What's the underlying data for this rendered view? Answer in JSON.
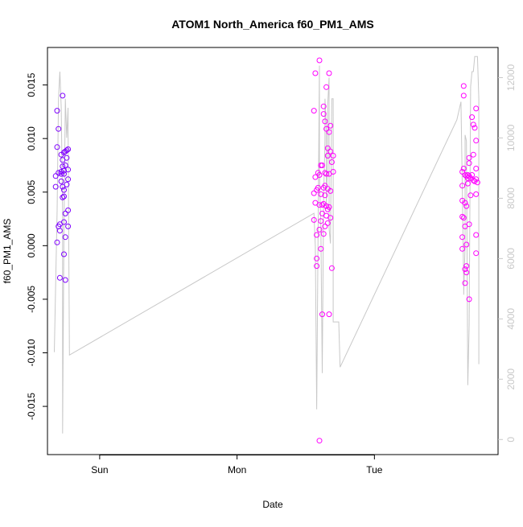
{
  "chart_data": {
    "type": "scatter",
    "title": "ATOM1 North_America f60_PM1_AMS",
    "xlabel": "Date",
    "ylabel": "f60_PM1_AMS",
    "x_ticks": [
      "Sun",
      "Mon",
      "Tue"
    ],
    "y_ticks": [
      "0.015",
      "0.010",
      "0.005",
      "0.000",
      "-0.005",
      "-0.010",
      "-0.015"
    ],
    "y_tick_values": [
      0.015,
      0.01,
      0.005,
      0.0,
      -0.005,
      -0.01,
      -0.015
    ],
    "ylim": [
      -0.0195,
      0.0185
    ],
    "y2_ticks": [
      "12000",
      "10000",
      "8000",
      "6000",
      "4000",
      "2000",
      "0"
    ],
    "y2_tick_values": [
      12000,
      10000,
      8000,
      6000,
      4000,
      2000,
      0
    ],
    "y2lim": [
      -500,
      13000
    ],
    "xlim_days_from_sun": [
      -0.38,
      2.9
    ],
    "secondary_line_color": "#c8c8c8",
    "series": [
      {
        "color": "#7f00ff",
        "points": [
          [
            -0.32,
            0.0065
          ],
          [
            -0.32,
            0.0055
          ],
          [
            -0.31,
            0.0126
          ],
          [
            -0.31,
            0.0092
          ],
          [
            -0.3,
            0.0109
          ],
          [
            -0.3,
            0.0068
          ],
          [
            -0.3,
            0.0018
          ],
          [
            -0.31,
            0.0003
          ],
          [
            -0.29,
            -0.003
          ],
          [
            -0.29,
            0.0014
          ],
          [
            -0.29,
            0.002
          ],
          [
            -0.28,
            0.0067
          ],
          [
            -0.28,
            0.0085
          ],
          [
            -0.28,
            0.0069
          ],
          [
            -0.28,
            0.006
          ],
          [
            -0.27,
            0.008
          ],
          [
            -0.27,
            0.014
          ],
          [
            -0.27,
            0.0074
          ],
          [
            -0.27,
            0.0055
          ],
          [
            -0.27,
            0.0045
          ],
          [
            -0.26,
            0.0087
          ],
          [
            -0.26,
            0.0067
          ],
          [
            -0.26,
            0.007
          ],
          [
            -0.26,
            0.0052
          ],
          [
            -0.26,
            0.0046
          ],
          [
            -0.26,
            0.0022
          ],
          [
            -0.26,
            -0.0008
          ],
          [
            -0.25,
            0.0088
          ],
          [
            -0.25,
            0.0075
          ],
          [
            -0.25,
            0.003
          ],
          [
            -0.25,
            0.0008
          ],
          [
            -0.25,
            -0.0032
          ],
          [
            -0.24,
            0.0089
          ],
          [
            -0.24,
            0.0082
          ],
          [
            -0.24,
            0.0057
          ],
          [
            -0.23,
            0.009
          ],
          [
            -0.23,
            0.0071
          ],
          [
            -0.23,
            0.0062
          ],
          [
            -0.23,
            0.0033
          ],
          [
            -0.23,
            0.0018
          ]
        ]
      },
      {
        "color": "#ff00ff",
        "points": [
          [
            1.56,
            0.0126
          ],
          [
            1.56,
            0.0049
          ],
          [
            1.56,
            0.0024
          ],
          [
            1.57,
            0.0161
          ],
          [
            1.57,
            0.0064
          ],
          [
            1.57,
            0.004
          ],
          [
            1.58,
            0.0052
          ],
          [
            1.58,
            0.001
          ],
          [
            1.58,
            -0.0012
          ],
          [
            1.58,
            -0.0019
          ],
          [
            1.59,
            0.0068
          ],
          [
            1.59,
            0.0054
          ],
          [
            1.6,
            0.0173
          ],
          [
            1.6,
            0.0066
          ],
          [
            1.6,
            0.0038
          ],
          [
            1.6,
            0.0015
          ],
          [
            1.6,
            -0.0182
          ],
          [
            1.61,
            0.0075
          ],
          [
            1.61,
            0.0048
          ],
          [
            1.61,
            0.0023
          ],
          [
            1.61,
            -0.0003
          ],
          [
            1.62,
            0.0075
          ],
          [
            1.62,
            0.0038
          ],
          [
            1.62,
            0.003
          ],
          [
            1.62,
            -0.0064
          ],
          [
            1.63,
            0.0123
          ],
          [
            1.63,
            0.013
          ],
          [
            1.63,
            0.0054
          ],
          [
            1.63,
            0.0039
          ],
          [
            1.63,
            0.0011
          ],
          [
            1.64,
            0.0116
          ],
          [
            1.64,
            0.0068
          ],
          [
            1.64,
            0.0056
          ],
          [
            1.64,
            0.0047
          ],
          [
            1.64,
            0.0018
          ],
          [
            1.65,
            0.0148
          ],
          [
            1.65,
            0.0109
          ],
          [
            1.65,
            0.0067
          ],
          [
            1.65,
            0.0037
          ],
          [
            1.65,
            0.0028
          ],
          [
            1.66,
            0.0091
          ],
          [
            1.66,
            0.0084
          ],
          [
            1.66,
            0.0053
          ],
          [
            1.66,
            0.0034
          ],
          [
            1.66,
            0.0021
          ],
          [
            1.67,
            0.0161
          ],
          [
            1.67,
            0.0106
          ],
          [
            1.67,
            0.0067
          ],
          [
            1.67,
            0.0036
          ],
          [
            1.67,
            -0.0064
          ],
          [
            1.68,
            0.0112
          ],
          [
            1.68,
            0.0088
          ],
          [
            1.68,
            0.0051
          ],
          [
            1.68,
            0.0026
          ],
          [
            1.69,
            -0.0021
          ],
          [
            1.69,
            0.0078
          ],
          [
            1.7,
            0.0084
          ],
          [
            1.7,
            0.0069
          ],
          [
            2.64,
            0.0069
          ],
          [
            2.64,
            0.0056
          ],
          [
            2.64,
            0.0042
          ],
          [
            2.64,
            0.0027
          ],
          [
            2.64,
            0.0008
          ],
          [
            2.64,
            -0.0003
          ],
          [
            2.65,
            0.0149
          ],
          [
            2.65,
            0.014
          ],
          [
            2.65,
            0.0072
          ],
          [
            2.65,
            0.0026
          ],
          [
            2.66,
            0.0066
          ],
          [
            2.66,
            0.004
          ],
          [
            2.66,
            0.0018
          ],
          [
            2.66,
            -0.0022
          ],
          [
            2.66,
            -0.0035
          ],
          [
            2.67,
            0.0065
          ],
          [
            2.67,
            0.0037
          ],
          [
            2.67,
            0.0001
          ],
          [
            2.67,
            -0.0019
          ],
          [
            2.67,
            -0.0025
          ],
          [
            2.68,
            0.0066
          ],
          [
            2.68,
            0.0063
          ],
          [
            2.68,
            0.0058
          ],
          [
            2.69,
            0.0082
          ],
          [
            2.69,
            0.0077
          ],
          [
            2.69,
            0.0065
          ],
          [
            2.69,
            0.002
          ],
          [
            2.69,
            -0.005
          ],
          [
            2.7,
            0.0063
          ],
          [
            2.7,
            0.0047
          ],
          [
            2.71,
            0.012
          ],
          [
            2.71,
            0.0066
          ],
          [
            2.72,
            0.0113
          ],
          [
            2.72,
            0.0085
          ],
          [
            2.72,
            0.0061
          ],
          [
            2.73,
            0.011
          ],
          [
            2.73,
            0.006
          ],
          [
            2.74,
            0.0128
          ],
          [
            2.74,
            0.0098
          ],
          [
            2.74,
            0.0072
          ],
          [
            2.74,
            0.0062
          ],
          [
            2.74,
            0.0048
          ],
          [
            2.74,
            0.001
          ],
          [
            2.74,
            -0.0007
          ],
          [
            2.75,
            0.0059
          ]
        ]
      }
    ],
    "secondary_series": {
      "name": "",
      "points": [
        [
          -0.33,
          2900
        ],
        [
          -0.31,
          7600
        ],
        [
          -0.3,
          11300
        ],
        [
          -0.29,
          12200
        ],
        [
          -0.28,
          11000
        ],
        [
          -0.27,
          7500
        ],
        [
          -0.27,
          200
        ],
        [
          -0.26,
          7000
        ],
        [
          -0.25,
          11300
        ],
        [
          -0.24,
          10000
        ],
        [
          -0.23,
          11000
        ],
        [
          -0.23,
          10500
        ],
        [
          -0.22,
          2800
        ],
        [
          1.56,
          7500
        ],
        [
          1.57,
          6400
        ],
        [
          1.58,
          1000
        ],
        [
          1.59,
          6800
        ],
        [
          1.6,
          12400
        ],
        [
          1.6,
          8800
        ],
        [
          1.61,
          7000
        ],
        [
          1.62,
          2200
        ],
        [
          1.63,
          8000
        ],
        [
          1.64,
          9900
        ],
        [
          1.64,
          11300
        ],
        [
          1.65,
          10300
        ],
        [
          1.65,
          7700
        ],
        [
          1.66,
          9500
        ],
        [
          1.66,
          11100
        ],
        [
          1.67,
          12000
        ],
        [
          1.67,
          7000
        ],
        [
          1.68,
          6500
        ],
        [
          1.69,
          11300
        ],
        [
          1.7,
          11300
        ],
        [
          1.7,
          3900
        ],
        [
          1.72,
          3900
        ],
        [
          1.74,
          3900
        ],
        [
          1.75,
          2400
        ],
        [
          2.6,
          10600
        ],
        [
          2.63,
          11200
        ],
        [
          2.64,
          8300
        ],
        [
          2.65,
          5200
        ],
        [
          2.65,
          4800
        ],
        [
          2.66,
          6400
        ],
        [
          2.66,
          10100
        ],
        [
          2.67,
          9900
        ],
        [
          2.68,
          1800
        ],
        [
          2.69,
          3800
        ],
        [
          2.7,
          11700
        ],
        [
          2.71,
          12200
        ],
        [
          2.72,
          12200
        ],
        [
          2.73,
          12700
        ],
        [
          2.74,
          12700
        ],
        [
          2.75,
          12700
        ],
        [
          2.76,
          11300
        ],
        [
          2.76,
          2500
        ]
      ]
    }
  }
}
